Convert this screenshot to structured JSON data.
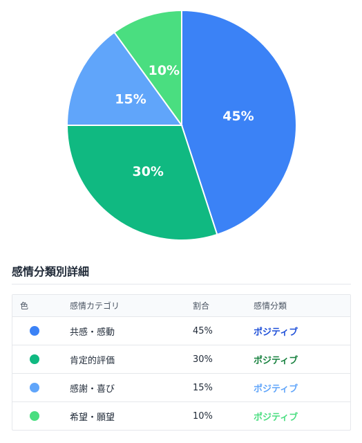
{
  "chart_data": {
    "type": "pie",
    "slices": [
      {
        "label": "45%",
        "value": 45,
        "color": "#3b82f6"
      },
      {
        "label": "30%",
        "value": 30,
        "color": "#10b981"
      },
      {
        "label": "15%",
        "value": 15,
        "color": "#60a5fa"
      },
      {
        "label": "10%",
        "value": 10,
        "color": "#4ade80"
      }
    ],
    "legend": "none"
  },
  "section": {
    "title": "感情分類別詳細"
  },
  "table": {
    "headers": {
      "color": "色",
      "category": "感情カテゴリ",
      "ratio": "割合",
      "sentiment": "感情分類"
    },
    "rows": [
      {
        "color": "#3b82f6",
        "category": "共感・感動",
        "ratio": "45%",
        "sentiment": "ポジティブ",
        "sentiment_color": "#1d4ed8"
      },
      {
        "color": "#10b981",
        "category": "肯定的評価",
        "ratio": "30%",
        "sentiment": "ポジティブ",
        "sentiment_color": "#15803d"
      },
      {
        "color": "#60a5fa",
        "category": "感謝・喜び",
        "ratio": "15%",
        "sentiment": "ポジティブ",
        "sentiment_color": "#60a5fa"
      },
      {
        "color": "#4ade80",
        "category": "希望・願望",
        "ratio": "10%",
        "sentiment": "ポジティブ",
        "sentiment_color": "#4ade80"
      }
    ]
  }
}
